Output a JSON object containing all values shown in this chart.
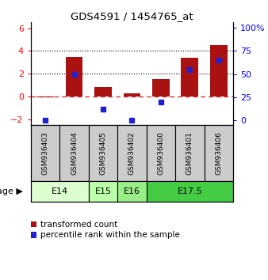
{
  "title": "GDS4591 / 1454765_at",
  "samples": [
    "GSM936403",
    "GSM936404",
    "GSM936405",
    "GSM936402",
    "GSM936400",
    "GSM936401",
    "GSM936406"
  ],
  "transformed_count": [
    -0.05,
    3.5,
    0.85,
    0.3,
    1.5,
    3.4,
    4.5
  ],
  "percentile_rank_right": [
    0,
    50,
    12,
    0,
    20,
    55,
    65
  ],
  "bar_color": "#aa1111",
  "dot_color": "#2222cc",
  "ylim_left": [
    -2.5,
    6.5
  ],
  "ylim_right": [
    -5.0,
    105.6
  ],
  "yticks_left": [
    -2,
    0,
    2,
    4,
    6
  ],
  "yticks_right": [
    0,
    25,
    50,
    75,
    100
  ],
  "hline_dashed_zero_color": "#cc3333",
  "dotted_lines": [
    2,
    4
  ],
  "age_groups": [
    {
      "label": "E14",
      "start": 0,
      "end": 2,
      "color": "#ddffd0"
    },
    {
      "label": "E15",
      "start": 2,
      "end": 3,
      "color": "#bbffaa"
    },
    {
      "label": "E16",
      "start": 3,
      "end": 4,
      "color": "#99ee88"
    },
    {
      "label": "E17.5",
      "start": 4,
      "end": 7,
      "color": "#44cc44"
    }
  ],
  "legend_red_label": "transformed count",
  "legend_blue_label": "percentile rank within the sample",
  "bar_width": 0.6,
  "sample_box_color": "#cccccc",
  "xlim": [
    -0.5,
    6.5
  ]
}
